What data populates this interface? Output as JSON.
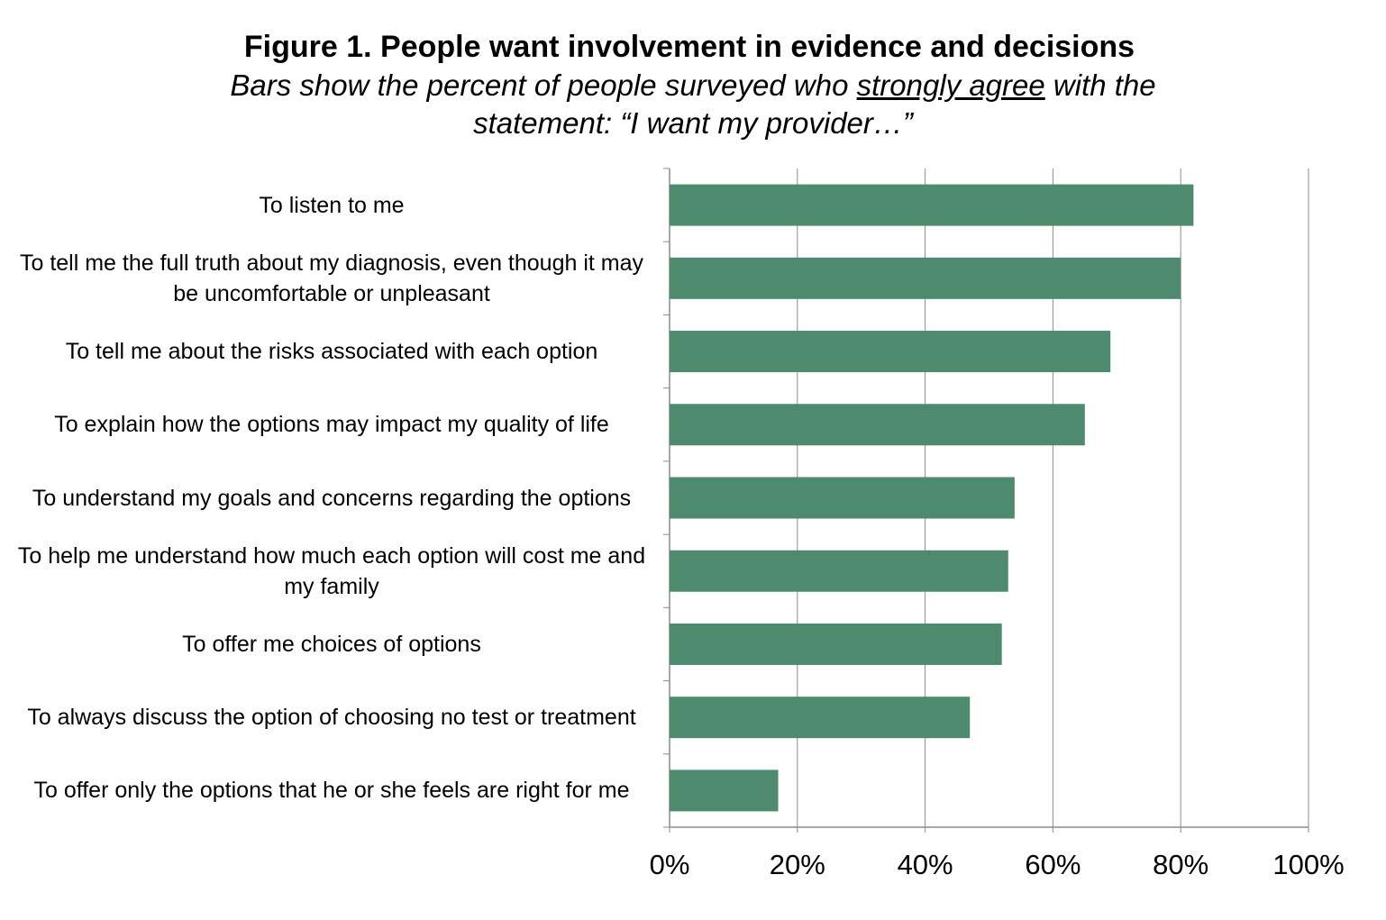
{
  "header": {
    "title": "Figure 1. People want involvement in evidence and decisions",
    "subtitle_line1_pre": "Bars show the percent of people surveyed who ",
    "subtitle_line1_emph": "strongly agree",
    "subtitle_line1_post": " with the",
    "subtitle_line2": "statement: “I want my provider…”"
  },
  "chart_data": {
    "type": "bar",
    "orientation": "horizontal",
    "title": "Figure 1. People want involvement in evidence and decisions",
    "subtitle": "Bars show the percent of people surveyed who strongly agree with the statement: “I want my provider…”",
    "categories": [
      "To listen to me",
      "To tell me the full truth about my diagnosis, even though it may be uncomfortable or unpleasant",
      "To tell me about the risks associated with each option",
      "To explain how the options may impact my quality of life",
      "To understand my goals and concerns regarding the options",
      "To help me understand how much each option will cost me and my family",
      "To offer me choices of options",
      "To always discuss the option of choosing no test or treatment",
      "To offer only the options that he or she feels are right for me"
    ],
    "values": [
      82,
      80,
      69,
      65,
      54,
      53,
      52,
      47,
      17
    ],
    "value_unit": "%",
    "xlim": [
      0,
      100
    ],
    "xticks": [
      "0%",
      "20%",
      "40%",
      "60%",
      "80%",
      "100%"
    ],
    "grid": "vertical",
    "legend": "none",
    "bar_color": "#4e8a6e",
    "gridline_color": "#8c8c8c"
  }
}
